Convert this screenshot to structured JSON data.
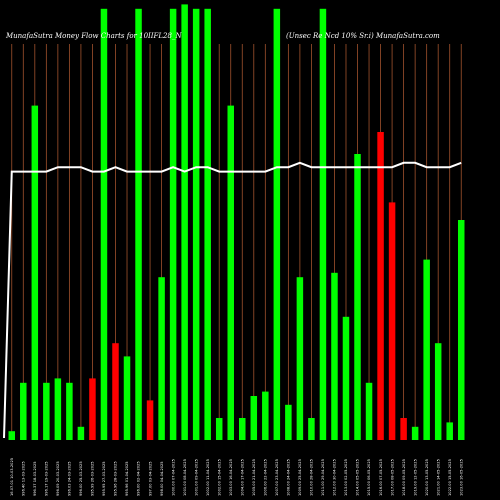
{
  "chart_data": {
    "type": "bar",
    "title_left": "MunafaSutra  Money Flow  Charts for 10IIFL28_N",
    "title_right": "(Unsec Re   Ncd 10% Sr.i) MunafaSutra.com",
    "x_tick_labels": [
      "16.07.01 10-03-2025",
      "996.40 13-03-2025",
      "996.37 18-03-2025",
      "996.17 19-03-2025",
      "996.09 20-03-2025",
      "996.03 24-03-2025",
      "996.00 25-03-2025",
      "995.99 26-03-2025",
      "995.95 27-03-2025",
      "995.96 28-03-2025",
      "995.96 01-04-2025",
      "996.00 02-04-2025",
      "997.00 03-04-2025",
      "998.00 04-04-2025",
      "1000.00 07-04-2025",
      "1001.00 08-04-2025",
      "1001.00 09-04-2025",
      "1002.00 11-04-2025",
      "1002.00 15-04-2025",
      "1003.00 16-04-2025",
      "1004.00 17-04-2025",
      "1005.00 21-04-2025",
      "1006.00 22-04-2025",
      "1007.00 23-04-2025",
      "1008.00 24-04-2025",
      "1009.00 25-04-2025",
      "1010.00 28-04-2025",
      "1011.00 29-04-2025",
      "1012.00 30-04-2025",
      "1013.00 02-05-2025",
      "1014.00 05-05-2025",
      "1015.00 06-05-2025",
      "1016.00 07-05-2025",
      "1017.00 08-05-2025",
      "1018.00 09-05-2025",
      "1019.00 12-05-2025",
      "1020.00 13-05-2025",
      "1021.00 14-05-2025",
      "1022.00 15-05-2025",
      "1023.00 16-05-2025"
    ],
    "bar_values": [
      2,
      13,
      76,
      13,
      14,
      13,
      3,
      14,
      98,
      22,
      19,
      98,
      9,
      37,
      98,
      99,
      98,
      98,
      5,
      76,
      5,
      10,
      11,
      98,
      8,
      37,
      5,
      98,
      38,
      28,
      65,
      13,
      70,
      54,
      5,
      3,
      41,
      22,
      4,
      50
    ],
    "bar_colors": [
      "green",
      "green",
      "green",
      "green",
      "green",
      "green",
      "green",
      "red",
      "green",
      "red",
      "green",
      "green",
      "red",
      "green",
      "green",
      "green",
      "green",
      "green",
      "green",
      "green",
      "green",
      "green",
      "green",
      "green",
      "green",
      "green",
      "green",
      "green",
      "green",
      "green",
      "green",
      "green",
      "red",
      "red",
      "red",
      "green",
      "green",
      "green",
      "green",
      "green"
    ],
    "line_values": [
      61,
      61,
      61,
      61,
      62,
      62,
      62,
      61,
      61,
      62,
      61,
      61,
      61,
      61,
      62,
      61,
      62,
      62,
      61,
      61,
      61,
      61,
      61,
      62,
      62,
      63,
      62,
      62,
      62,
      62,
      62,
      62,
      62,
      62,
      63,
      63,
      62,
      62,
      62,
      63
    ],
    "ylim": [
      0,
      100
    ],
    "colors": {
      "background": "#000000",
      "up": "#00ff00",
      "down": "#ff0000",
      "line": "#ffffff",
      "grid": "#a0522d"
    }
  }
}
